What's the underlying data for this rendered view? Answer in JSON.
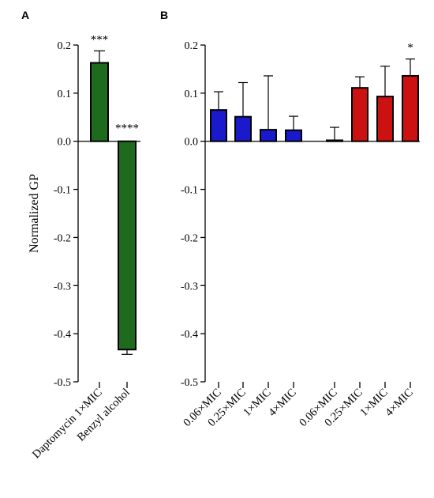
{
  "chart_data": [
    {
      "panel": "A",
      "type": "bar",
      "ylabel": "Normalized GP",
      "ylim": [
        -0.5,
        0.2
      ],
      "yticks": [
        "0.2",
        "0.1",
        "0.0",
        "-0.1",
        "-0.2",
        "-0.3",
        "-0.4",
        "-0.5"
      ],
      "categories": [
        "Daptomycin 1×MIC",
        "Benzyl alcohol"
      ],
      "values": [
        0.163,
        -0.433
      ],
      "errors": [
        0.025,
        0.01
      ],
      "bar_colors": [
        "#1e6b1e",
        "#1e6b1e"
      ],
      "annotations": [
        "***",
        "****"
      ]
    },
    {
      "panel": "B",
      "type": "bar",
      "ylim": [
        -0.5,
        0.2
      ],
      "yticks": [
        "0.2",
        "0.1",
        "0.0",
        "-0.1",
        "-0.2",
        "-0.3",
        "-0.4",
        "-0.5"
      ],
      "categories": [
        "0.06×MIC",
        "0.25×MIC",
        "1×MIC",
        "4×MIC",
        "0.06×MIC",
        "0.25×MIC",
        "1×MIC",
        "4×MIC"
      ],
      "values": [
        0.065,
        0.051,
        0.024,
        0.023,
        0.002,
        0.111,
        0.093,
        0.136
      ],
      "errors": [
        0.038,
        0.071,
        0.112,
        0.029,
        0.027,
        0.023,
        0.063,
        0.035
      ],
      "bar_colors": [
        "#1a1acc",
        "#1a1acc",
        "#1a1acc",
        "#1a1acc",
        "#cc1111",
        "#cc1111",
        "#cc1111",
        "#cc1111"
      ],
      "annotations": [
        "",
        "",
        "",
        "",
        "",
        "",
        "",
        "*"
      ]
    }
  ]
}
